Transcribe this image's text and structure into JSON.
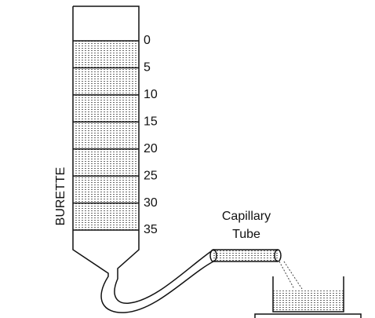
{
  "diagram": {
    "scale_labels": [
      "0",
      "5",
      "10",
      "15",
      "20",
      "25",
      "30",
      "35"
    ],
    "burette_label": "BURETTE",
    "capillary_label": [
      "Capillary",
      "Tube"
    ]
  }
}
